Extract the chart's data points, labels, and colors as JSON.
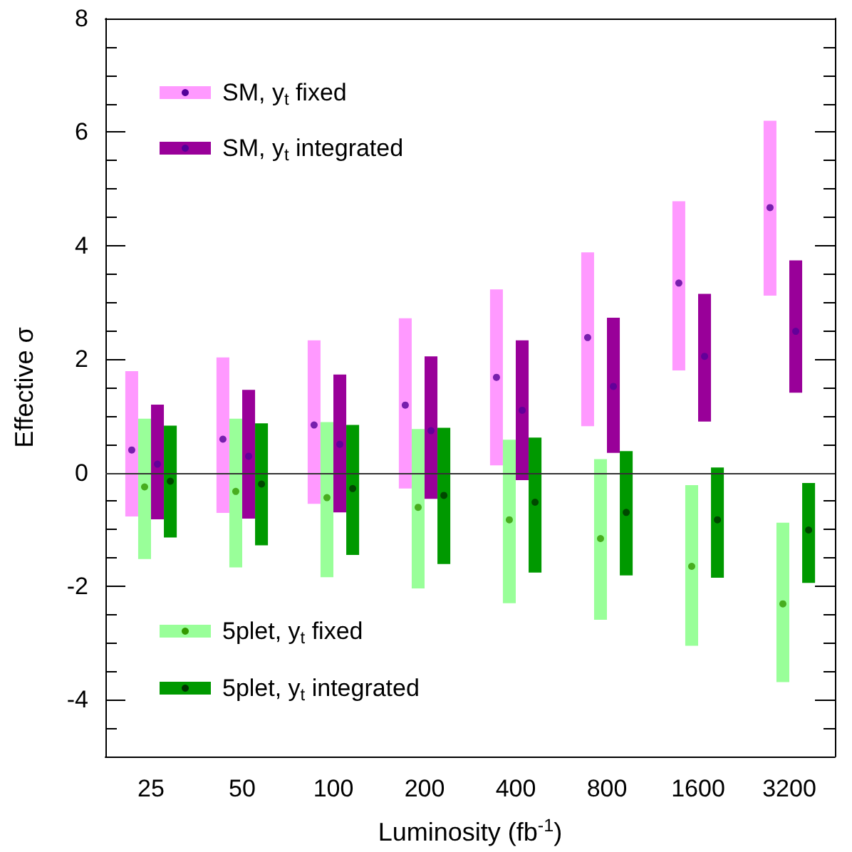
{
  "chart_data": {
    "type": "bar",
    "xlabel": "Luminosity (fb$^{-1}$)",
    "ylabel": "Effective σ",
    "categories": [
      "25",
      "50",
      "100",
      "200",
      "400",
      "800",
      "1600",
      "3200"
    ],
    "ylim": [
      -5,
      8
    ],
    "yticks": [
      {
        "value": -4.5,
        "label": null
      },
      -4,
      {
        "value": -3.5,
        "label": null
      },
      {
        "value": -3,
        "label": null
      },
      {
        "value": -2.5,
        "label": null
      },
      -2,
      {
        "value": -1.5,
        "label": null
      },
      {
        "value": -1,
        "label": null
      },
      {
        "value": -0.5,
        "label": null
      },
      0,
      {
        "value": 0.5,
        "label": null
      },
      {
        "value": 1,
        "label": null
      },
      {
        "value": 1.5,
        "label": null
      },
      2,
      {
        "value": 2.5,
        "label": null
      },
      {
        "value": 3,
        "label": null
      },
      {
        "value": 3.5,
        "label": null
      },
      4,
      {
        "value": 4.5,
        "label": null
      },
      {
        "value": 5,
        "label": null
      },
      {
        "value": 5.5,
        "label": null
      },
      6,
      {
        "value": 6.5,
        "label": null
      },
      {
        "value": 7,
        "label": null
      },
      {
        "value": 7.5,
        "label": null
      },
      8
    ],
    "series": [
      {
        "name": "SM, y$_{t}$ fixed",
        "color": "#ff99ff",
        "base": [
          -0.77,
          -0.71,
          -0.55,
          -0.28,
          0.13,
          0.82,
          1.8,
          3.12
        ],
        "values": [
          2.56,
          2.74,
          2.88,
          3.0,
          3.1,
          3.06,
          2.98,
          3.08
        ]
      },
      {
        "name": "5plet, y$_{t}$ fixed",
        "color": "#99ff99",
        "base": [
          -1.52,
          -1.67,
          -1.84,
          -2.04,
          -2.3,
          -2.59,
          -3.05,
          -3.69
        ],
        "values": [
          2.47,
          2.62,
          2.73,
          2.81,
          2.88,
          2.83,
          2.83,
          2.81
        ]
      },
      {
        "name": "SM, y$_{t}$ integrated",
        "color": "#990099",
        "base": [
          -0.82,
          -0.81,
          -0.7,
          -0.46,
          -0.13,
          0.35,
          0.9,
          1.41
        ],
        "values": [
          2.02,
          2.27,
          2.43,
          2.51,
          2.46,
          2.38,
          2.25,
          2.33
        ]
      },
      {
        "name": "5plet, y$_{t}$ integrated",
        "color": "#009900",
        "base": [
          -1.14,
          -1.28,
          -1.45,
          -1.61,
          -1.76,
          -1.81,
          -1.85,
          -1.94
        ],
        "values": [
          1.97,
          2.15,
          2.29,
          2.4,
          2.38,
          2.19,
          1.94,
          1.76
        ]
      },
      {
        "type": "scatter",
        "color": "#550099",
        "values": [
          0.4,
          0.59,
          0.84,
          1.19,
          1.68,
          2.38,
          3.34,
          4.67
        ]
      },
      {
        "type": "scatter",
        "color": "#339900",
        "values": [
          -0.25,
          -0.33,
          -0.44,
          -0.61,
          -0.83,
          -1.16,
          -1.65,
          -2.31
        ]
      },
      {
        "type": "scatter",
        "color": "#550099",
        "values": [
          0.15,
          0.29,
          0.5,
          0.74,
          1.1,
          1.52,
          2.05,
          2.49
        ]
      },
      {
        "type": "scatter",
        "color": "#003300",
        "values": [
          -0.15,
          -0.2,
          -0.28,
          -0.4,
          -0.52,
          -0.7,
          -0.83,
          -1.01
        ]
      }
    ],
    "ref_lines": [
      {
        "axis": "y",
        "value": 0,
        "color": "#333333"
      }
    ],
    "grid": false,
    "legend": "left",
    "marker": "circle"
  }
}
